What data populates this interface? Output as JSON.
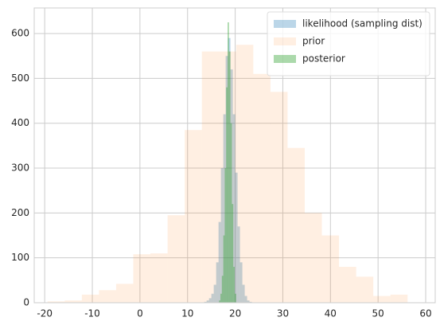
{
  "chart_data": {
    "type": "histogram",
    "series": [
      {
        "name": "likelihood (sampling dist)",
        "color": "#1f77b4",
        "opacity": 0.3,
        "bins": [
          13.5,
          14,
          14.5,
          15,
          15.5,
          16,
          16.5,
          17,
          17.5,
          18,
          18.5,
          19,
          19.5,
          20,
          20.5,
          21,
          21.5,
          22,
          22.5,
          23,
          23.5
        ],
        "values": [
          2,
          5,
          10,
          20,
          40,
          90,
          180,
          300,
          420,
          550,
          590,
          520,
          420,
          290,
          170,
          90,
          40,
          15,
          5,
          2
        ]
      },
      {
        "name": "prior",
        "color": "#ff7f0e",
        "opacity": 0.12,
        "bins": [
          -19.4,
          -15.8,
          -12.2,
          -8.6,
          -5,
          -1.4,
          2.2,
          5.8,
          9.4,
          13,
          16.6,
          20.2,
          23.8,
          27.4,
          31,
          34.6,
          38.2,
          41.8,
          45.4,
          49,
          52.6,
          56.2
        ],
        "values": [
          3,
          5,
          18,
          28,
          42,
          108,
          110,
          195,
          385,
          560,
          560,
          575,
          510,
          470,
          345,
          200,
          150,
          80,
          58,
          15,
          18
        ]
      },
      {
        "name": "posterior",
        "color": "#2ca02c",
        "opacity": 0.4,
        "bins": [
          16.6,
          16.9,
          17.2,
          17.5,
          17.8,
          18.1,
          18.4,
          18.7,
          19,
          19.3,
          19.6,
          19.9,
          20.2
        ],
        "values": [
          5,
          20,
          60,
          150,
          300,
          480,
          625,
          560,
          400,
          220,
          80,
          20
        ]
      }
    ],
    "xlim": [
      -22.2,
      62
    ],
    "ylim": [
      0,
      657
    ],
    "xticks": [
      -20,
      -10,
      0,
      10,
      20,
      30,
      40,
      50,
      60
    ],
    "yticks": [
      0,
      100,
      200,
      300,
      400,
      500,
      600
    ],
    "grid": true,
    "legend": "upper right"
  }
}
